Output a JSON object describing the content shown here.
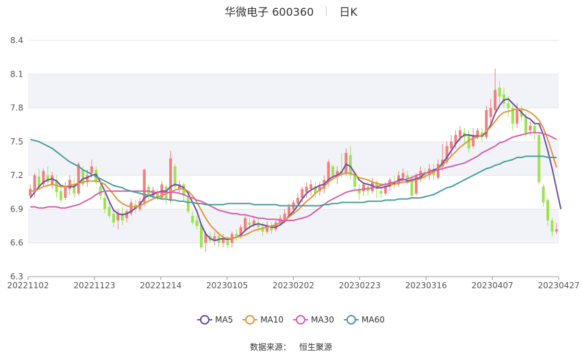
{
  "title": {
    "main": "华微电子 600360",
    "sub": "日K"
  },
  "source": {
    "label": "数据来源：",
    "value": "恒生聚源"
  },
  "colors": {
    "up": "#f47d7d",
    "down": "#9be34f",
    "ma5": "#6b4ea3",
    "ma10": "#e0973f",
    "ma30": "#d75fac",
    "ma60": "#4a9d9c",
    "band": "#f2f3f8",
    "grid": "#e6e6e6"
  },
  "chart_data": {
    "type": "candlestick",
    "ylim": [
      6.3,
      8.4
    ],
    "yticks": [
      "6.3",
      "6.6",
      "6.9",
      "7.2",
      "7.5",
      "7.8",
      "8.1",
      "8.4"
    ],
    "xticks": [
      "20221102",
      "20221123",
      "20221214",
      "20230105",
      "20230202",
      "20230223",
      "20230316",
      "20230407",
      "20230427"
    ],
    "legend": [
      "MA5",
      "MA10",
      "MA30",
      "MA60"
    ],
    "candles": [
      [
        7.02,
        7.08,
        6.99,
        7.12
      ],
      [
        7.06,
        7.2,
        7.01,
        7.22
      ],
      [
        7.19,
        7.1,
        7.08,
        7.26
      ],
      [
        7.12,
        7.24,
        7.1,
        7.26
      ],
      [
        7.2,
        7.14,
        7.1,
        7.28
      ],
      [
        7.12,
        7.2,
        7.08,
        7.23
      ],
      [
        7.16,
        7.05,
        7.0,
        7.2
      ],
      [
        7.06,
        6.98,
        6.96,
        7.1
      ],
      [
        7.0,
        7.1,
        6.98,
        7.14
      ],
      [
        7.08,
        7.16,
        7.03,
        7.2
      ],
      [
        7.12,
        7.04,
        7.0,
        7.18
      ],
      [
        7.04,
        7.3,
        7.02,
        7.32
      ],
      [
        7.25,
        7.12,
        7.1,
        7.28
      ],
      [
        7.14,
        7.2,
        7.1,
        7.25
      ],
      [
        7.22,
        7.28,
        7.18,
        7.34
      ],
      [
        7.25,
        7.14,
        7.12,
        7.28
      ],
      [
        7.1,
        7.02,
        6.98,
        7.14
      ],
      [
        7.0,
        6.9,
        6.86,
        7.04
      ],
      [
        6.92,
        6.84,
        6.82,
        6.96
      ],
      [
        6.86,
        6.78,
        6.74,
        6.9
      ],
      [
        6.8,
        6.86,
        6.72,
        6.9
      ],
      [
        6.86,
        6.8,
        6.76,
        6.92
      ],
      [
        6.82,
        6.88,
        6.78,
        6.9
      ],
      [
        6.86,
        6.96,
        6.84,
        6.99
      ],
      [
        6.94,
        6.9,
        6.86,
        6.98
      ],
      [
        6.9,
        6.97,
        6.88,
        7.0
      ],
      [
        6.96,
        7.25,
        6.92,
        7.26
      ],
      [
        7.1,
        7.02,
        6.98,
        7.12
      ],
      [
        7.02,
        7.07,
        7.0,
        7.1
      ],
      [
        7.05,
        7.01,
        6.98,
        7.08
      ],
      [
        7.0,
        7.12,
        6.98,
        7.15
      ],
      [
        7.1,
        7.0,
        6.94,
        7.12
      ],
      [
        6.98,
        7.35,
        6.95,
        7.42
      ],
      [
        7.28,
        7.1,
        7.08,
        7.3
      ],
      [
        7.08,
        7.12,
        7.04,
        7.16
      ],
      [
        7.12,
        7.02,
        6.98,
        7.14
      ],
      [
        7.0,
        6.88,
        6.86,
        7.04
      ],
      [
        6.84,
        6.78,
        6.76,
        6.88
      ],
      [
        6.8,
        6.75,
        6.72,
        6.84
      ],
      [
        6.76,
        6.56,
        6.54,
        6.78
      ],
      [
        6.6,
        6.68,
        6.52,
        6.7
      ],
      [
        6.66,
        6.62,
        6.6,
        6.7
      ],
      [
        6.62,
        6.66,
        6.58,
        6.7
      ],
      [
        6.66,
        6.6,
        6.56,
        6.7
      ],
      [
        6.6,
        6.64,
        6.56,
        6.68
      ],
      [
        6.62,
        6.58,
        6.55,
        6.66
      ],
      [
        6.6,
        6.68,
        6.56,
        6.7
      ],
      [
        6.68,
        6.66,
        6.62,
        6.72
      ],
      [
        6.66,
        6.74,
        6.64,
        6.76
      ],
      [
        6.72,
        6.82,
        6.7,
        6.84
      ],
      [
        6.78,
        6.76,
        6.72,
        6.82
      ],
      [
        6.76,
        6.8,
        6.74,
        6.84
      ],
      [
        6.78,
        6.74,
        6.7,
        6.82
      ],
      [
        6.74,
        6.7,
        6.66,
        6.78
      ],
      [
        6.7,
        6.76,
        6.68,
        6.79
      ],
      [
        6.74,
        6.71,
        6.68,
        6.78
      ],
      [
        6.72,
        6.78,
        6.7,
        6.8
      ],
      [
        6.77,
        6.82,
        6.75,
        6.85
      ],
      [
        6.8,
        6.86,
        6.78,
        6.9
      ],
      [
        6.84,
        6.92,
        6.82,
        6.95
      ],
      [
        6.9,
        6.96,
        6.86,
        6.98
      ],
      [
        6.95,
        7.0,
        6.92,
        7.04
      ],
      [
        7.0,
        7.08,
        6.96,
        7.1
      ],
      [
        7.05,
        7.1,
        7.0,
        7.14
      ],
      [
        7.08,
        7.12,
        7.02,
        7.16
      ],
      [
        7.1,
        7.04,
        7.0,
        7.14
      ],
      [
        7.06,
        7.1,
        7.02,
        7.14
      ],
      [
        7.08,
        7.16,
        7.04,
        7.2
      ],
      [
        7.14,
        7.32,
        7.1,
        7.34
      ],
      [
        7.28,
        7.2,
        7.15,
        7.3
      ],
      [
        7.2,
        7.24,
        7.12,
        7.28
      ],
      [
        7.24,
        7.22,
        7.18,
        7.4
      ],
      [
        7.22,
        7.4,
        7.2,
        7.44
      ],
      [
        7.38,
        7.2,
        7.16,
        7.46
      ],
      [
        7.2,
        7.1,
        7.05,
        7.22
      ],
      [
        7.08,
        7.04,
        6.98,
        7.12
      ],
      [
        7.06,
        7.12,
        7.02,
        7.14
      ],
      [
        7.1,
        7.06,
        7.02,
        7.14
      ],
      [
        7.06,
        7.14,
        7.04,
        7.18
      ],
      [
        7.14,
        7.08,
        7.0,
        7.16
      ],
      [
        7.06,
        7.04,
        7.0,
        7.1
      ],
      [
        7.04,
        7.1,
        7.02,
        7.14
      ],
      [
        7.1,
        7.16,
        7.06,
        7.18
      ],
      [
        7.14,
        7.12,
        7.08,
        7.2
      ],
      [
        7.12,
        7.2,
        7.1,
        7.24
      ],
      [
        7.18,
        7.22,
        7.14,
        7.26
      ],
      [
        7.2,
        7.18,
        7.12,
        7.24
      ],
      [
        7.16,
        7.02,
        7.0,
        7.2
      ],
      [
        7.04,
        7.2,
        7.02,
        7.22
      ],
      [
        7.18,
        7.24,
        7.14,
        7.28
      ],
      [
        7.22,
        7.2,
        7.16,
        7.26
      ],
      [
        7.2,
        7.26,
        7.16,
        7.3
      ],
      [
        7.24,
        7.2,
        7.16,
        7.3
      ],
      [
        7.18,
        7.3,
        7.16,
        7.34
      ],
      [
        7.28,
        7.34,
        7.24,
        7.48
      ],
      [
        7.32,
        7.46,
        7.3,
        7.5
      ],
      [
        7.44,
        7.5,
        7.38,
        7.56
      ],
      [
        7.48,
        7.56,
        7.44,
        7.6
      ],
      [
        7.54,
        7.6,
        7.5,
        7.64
      ],
      [
        7.58,
        7.54,
        7.48,
        7.62
      ],
      [
        7.56,
        7.44,
        7.4,
        7.6
      ],
      [
        7.46,
        7.56,
        7.44,
        7.62
      ],
      [
        7.54,
        7.6,
        7.52,
        7.62
      ],
      [
        7.58,
        7.54,
        7.5,
        7.62
      ],
      [
        7.54,
        7.78,
        7.52,
        7.82
      ],
      [
        7.72,
        7.8,
        7.66,
        7.88
      ],
      [
        7.78,
        7.96,
        7.74,
        8.15
      ],
      [
        7.98,
        7.9,
        7.84,
        8.04
      ],
      [
        7.92,
        7.84,
        7.8,
        7.98
      ],
      [
        7.84,
        7.8,
        7.72,
        7.9
      ],
      [
        7.8,
        7.66,
        7.6,
        7.82
      ],
      [
        7.66,
        7.78,
        7.62,
        7.84
      ],
      [
        7.78,
        7.72,
        7.68,
        7.82
      ],
      [
        7.72,
        7.58,
        7.54,
        7.76
      ],
      [
        7.6,
        7.64,
        7.56,
        7.68
      ],
      [
        7.64,
        7.58,
        7.52,
        7.68
      ],
      [
        7.56,
        7.14,
        7.12,
        7.58
      ],
      [
        7.1,
        6.96,
        6.92,
        7.12
      ],
      [
        6.98,
        6.8,
        6.75,
        7.0
      ],
      [
        6.8,
        6.7,
        6.66,
        6.82
      ],
      [
        6.7,
        6.72,
        6.68,
        6.78
      ]
    ],
    "series": [
      {
        "name": "MA5",
        "color": "#6b4ea3",
        "values": [
          7.0,
          7.05,
          7.1,
          7.14,
          7.16,
          7.17,
          7.15,
          7.11,
          7.1,
          7.1,
          7.1,
          7.13,
          7.17,
          7.18,
          7.2,
          7.21,
          7.14,
          7.06,
          6.97,
          6.89,
          6.86,
          6.85,
          6.86,
          6.88,
          6.91,
          6.94,
          7.0,
          7.02,
          7.03,
          7.05,
          7.06,
          7.06,
          7.1,
          7.12,
          7.11,
          7.09,
          7.04,
          6.96,
          6.88,
          6.76,
          6.68,
          6.64,
          6.62,
          6.63,
          6.64,
          6.63,
          6.64,
          6.65,
          6.67,
          6.71,
          6.74,
          6.76,
          6.77,
          6.76,
          6.75,
          6.74,
          6.74,
          6.76,
          6.79,
          6.84,
          6.88,
          6.93,
          6.99,
          7.04,
          7.07,
          7.09,
          7.11,
          7.12,
          7.16,
          7.19,
          7.2,
          7.23,
          7.3,
          7.28,
          7.22,
          7.16,
          7.13,
          7.12,
          7.11,
          7.09,
          7.09,
          7.1,
          7.11,
          7.13,
          7.16,
          7.17,
          7.15,
          7.16,
          7.17,
          7.18,
          7.22,
          7.23,
          7.25,
          7.26,
          7.31,
          7.36,
          7.42,
          7.48,
          7.53,
          7.56,
          7.56,
          7.55,
          7.55,
          7.55,
          7.58,
          7.65,
          7.75,
          7.82,
          7.87,
          7.88,
          7.84,
          7.8,
          7.76,
          7.72,
          7.7,
          7.66,
          7.66,
          7.56,
          7.42,
          7.26,
          7.08,
          6.9
        ]
      },
      {
        "name": "MA10",
        "color": "#e0973f",
        "values": [
          7.06,
          7.06,
          7.08,
          7.1,
          7.11,
          7.12,
          7.11,
          7.1,
          7.1,
          7.11,
          7.12,
          7.13,
          7.14,
          7.15,
          7.15,
          7.15,
          7.14,
          7.12,
          7.08,
          7.03,
          6.98,
          6.95,
          6.93,
          6.92,
          6.92,
          6.93,
          6.95,
          6.97,
          6.99,
          7.01,
          7.02,
          7.04,
          7.05,
          7.07,
          7.08,
          7.08,
          7.06,
          7.02,
          6.96,
          6.89,
          6.82,
          6.76,
          6.72,
          6.68,
          6.65,
          6.64,
          6.64,
          6.65,
          6.66,
          6.67,
          6.69,
          6.71,
          6.72,
          6.73,
          6.74,
          6.75,
          6.76,
          6.78,
          6.8,
          6.83,
          6.86,
          6.89,
          6.93,
          6.97,
          7.0,
          7.04,
          7.07,
          7.1,
          7.14,
          7.17,
          7.19,
          7.21,
          7.22,
          7.22,
          7.2,
          7.18,
          7.17,
          7.16,
          7.14,
          7.13,
          7.12,
          7.12,
          7.12,
          7.12,
          7.13,
          7.14,
          7.14,
          7.15,
          7.16,
          7.17,
          7.19,
          7.21,
          7.23,
          7.26,
          7.29,
          7.33,
          7.37,
          7.41,
          7.45,
          7.48,
          7.51,
          7.53,
          7.54,
          7.56,
          7.59,
          7.63,
          7.68,
          7.73,
          7.76,
          7.77,
          7.78,
          7.79,
          7.79,
          7.78,
          7.76,
          7.73,
          7.69,
          7.62,
          7.52,
          7.4,
          7.27
        ]
      },
      {
        "name": "MA30",
        "color": "#d75fac",
        "values": [
          6.92,
          6.92,
          6.91,
          6.91,
          6.92,
          6.92,
          6.92,
          6.91,
          6.91,
          6.92,
          6.93,
          6.94,
          6.96,
          6.98,
          7.0,
          7.03,
          7.05,
          7.06,
          7.06,
          7.06,
          7.06,
          7.06,
          7.06,
          7.06,
          7.06,
          7.06,
          7.06,
          7.06,
          7.05,
          7.05,
          7.05,
          7.05,
          7.05,
          7.05,
          7.04,
          7.03,
          7.01,
          7.0,
          6.98,
          6.97,
          6.95,
          6.93,
          6.91,
          6.89,
          6.88,
          6.87,
          6.86,
          6.86,
          6.85,
          6.85,
          6.84,
          6.83,
          6.82,
          6.82,
          6.81,
          6.81,
          6.81,
          6.8,
          6.8,
          6.8,
          6.8,
          6.81,
          6.82,
          6.83,
          6.85,
          6.88,
          6.91,
          6.94,
          6.97,
          6.99,
          7.01,
          7.03,
          7.05,
          7.06,
          7.07,
          7.07,
          7.08,
          7.08,
          7.09,
          7.1,
          7.11,
          7.12,
          7.13,
          7.14,
          7.15,
          7.16,
          7.17,
          7.18,
          7.2,
          7.21,
          7.22,
          7.23,
          7.24,
          7.25,
          7.26,
          7.27,
          7.28,
          7.29,
          7.3,
          7.31,
          7.33,
          7.35,
          7.37,
          7.4,
          7.42,
          7.44,
          7.46,
          7.49,
          7.5,
          7.52,
          7.54,
          7.55,
          7.56,
          7.57,
          7.58,
          7.58,
          7.58,
          7.57,
          7.56,
          7.54,
          7.52
        ]
      },
      {
        "name": "MA60",
        "color": "#4a9d9c",
        "values": [
          7.52,
          7.51,
          7.5,
          7.48,
          7.46,
          7.44,
          7.41,
          7.38,
          7.35,
          7.32,
          7.3,
          7.28,
          7.25,
          7.23,
          7.21,
          7.19,
          7.17,
          7.15,
          7.13,
          7.11,
          7.1,
          7.09,
          7.07,
          7.06,
          7.05,
          7.04,
          7.03,
          7.02,
          7.01,
          7.0,
          6.99,
          6.99,
          6.98,
          6.98,
          6.97,
          6.97,
          6.96,
          6.96,
          6.95,
          6.95,
          6.94,
          6.94,
          6.94,
          6.94,
          6.94,
          6.95,
          6.95,
          6.95,
          6.95,
          6.95,
          6.95,
          6.94,
          6.94,
          6.94,
          6.94,
          6.94,
          6.94,
          6.93,
          6.93,
          6.93,
          6.93,
          6.93,
          6.93,
          6.93,
          6.93,
          6.93,
          6.93,
          6.94,
          6.94,
          6.95,
          6.95,
          6.96,
          6.96,
          6.96,
          6.96,
          6.96,
          6.96,
          6.97,
          6.97,
          6.97,
          6.97,
          6.98,
          6.98,
          6.98,
          6.99,
          6.99,
          6.99,
          7.0,
          7.0,
          7.0,
          7.01,
          7.02,
          7.03,
          7.05,
          7.07,
          7.09,
          7.1,
          7.12,
          7.14,
          7.16,
          7.18,
          7.2,
          7.22,
          7.24,
          7.26,
          7.27,
          7.29,
          7.3,
          7.32,
          7.33,
          7.34,
          7.36,
          7.36,
          7.37,
          7.37,
          7.37,
          7.37,
          7.37,
          7.36,
          7.36,
          7.36
        ]
      }
    ]
  }
}
